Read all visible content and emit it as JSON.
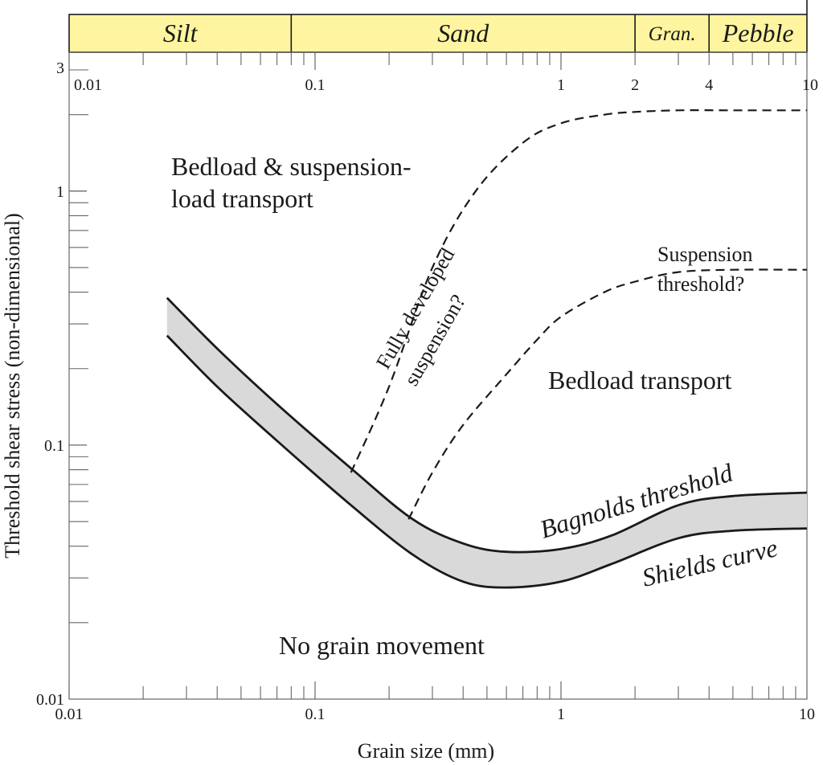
{
  "chart_data": {
    "type": "line",
    "xlabel": "Grain size (mm)",
    "ylabel": "Threshold shear stress (non-dimensional)",
    "xscale": "log",
    "yscale": "log",
    "xlim": [
      0.01,
      10
    ],
    "ylim": [
      0.01,
      3
    ],
    "x_tick_labels": [
      "0.01",
      "0.1",
      "1",
      "10"
    ],
    "y_tick_labels": [
      "0.01",
      "0.1",
      "1",
      "3"
    ],
    "top_x_tick_labels": [
      "0.01",
      "0.1",
      "1",
      "2",
      "4",
      "10"
    ],
    "grain_classes": [
      {
        "name": "Silt",
        "from": 0.01,
        "to": 0.08
      },
      {
        "name": "Sand",
        "from": 0.08,
        "to": 2
      },
      {
        "name": "Gran.",
        "from": 2,
        "to": 4
      },
      {
        "name": "Pebble",
        "from": 4,
        "to": 10
      }
    ],
    "series": [
      {
        "name": "Bagnolds threshold",
        "style": "solid",
        "x": [
          0.025,
          0.04,
          0.07,
          0.14,
          0.25,
          0.4,
          0.6,
          1.0,
          1.6,
          3.0,
          5.0,
          10.0
        ],
        "y": [
          0.38,
          0.24,
          0.145,
          0.081,
          0.051,
          0.041,
          0.038,
          0.039,
          0.044,
          0.058,
          0.063,
          0.065
        ]
      },
      {
        "name": "Shields curve",
        "style": "solid",
        "x": [
          0.025,
          0.04,
          0.07,
          0.14,
          0.25,
          0.4,
          0.6,
          1.0,
          1.6,
          3.0,
          5.0,
          10.0
        ],
        "y": [
          0.27,
          0.17,
          0.104,
          0.058,
          0.037,
          0.029,
          0.0275,
          0.029,
          0.034,
          0.043,
          0.046,
          0.047
        ]
      },
      {
        "name": "Fully developed suspension?",
        "style": "dashed",
        "x": [
          0.14,
          0.2,
          0.3,
          0.45,
          0.7,
          1.0,
          1.5,
          2.0,
          3.0,
          5.0,
          10.0
        ],
        "y": [
          0.078,
          0.17,
          0.5,
          1.0,
          1.55,
          1.85,
          2.0,
          2.05,
          2.08,
          2.08,
          2.08
        ]
      },
      {
        "name": "Suspension threshold?",
        "style": "dashed",
        "x": [
          0.24,
          0.3,
          0.4,
          0.6,
          0.8,
          1.0,
          1.5,
          2.0,
          3.0,
          5.0,
          10.0
        ],
        "y": [
          0.051,
          0.078,
          0.12,
          0.19,
          0.26,
          0.32,
          0.4,
          0.44,
          0.48,
          0.49,
          0.49
        ]
      }
    ],
    "annotations": {
      "bedload_suspension_1": "Bedload & suspension-",
      "bedload_suspension_2": "load transport",
      "bedload": "Bedload transport",
      "no_movement": "No grain movement",
      "fully_developed_1": "Fully developed",
      "fully_developed_2": "suspension?",
      "suspension_threshold_1": "Suspension",
      "suspension_threshold_2": "threshold?",
      "bagnolds": "Bagnolds threshold",
      "shields": "Shields curve"
    },
    "colors": {
      "grade_bar": "#fff5a0",
      "band_fill": "#d9d9d9",
      "line": "#1a1a1a",
      "frame": "#666666"
    },
    "grid": false
  }
}
